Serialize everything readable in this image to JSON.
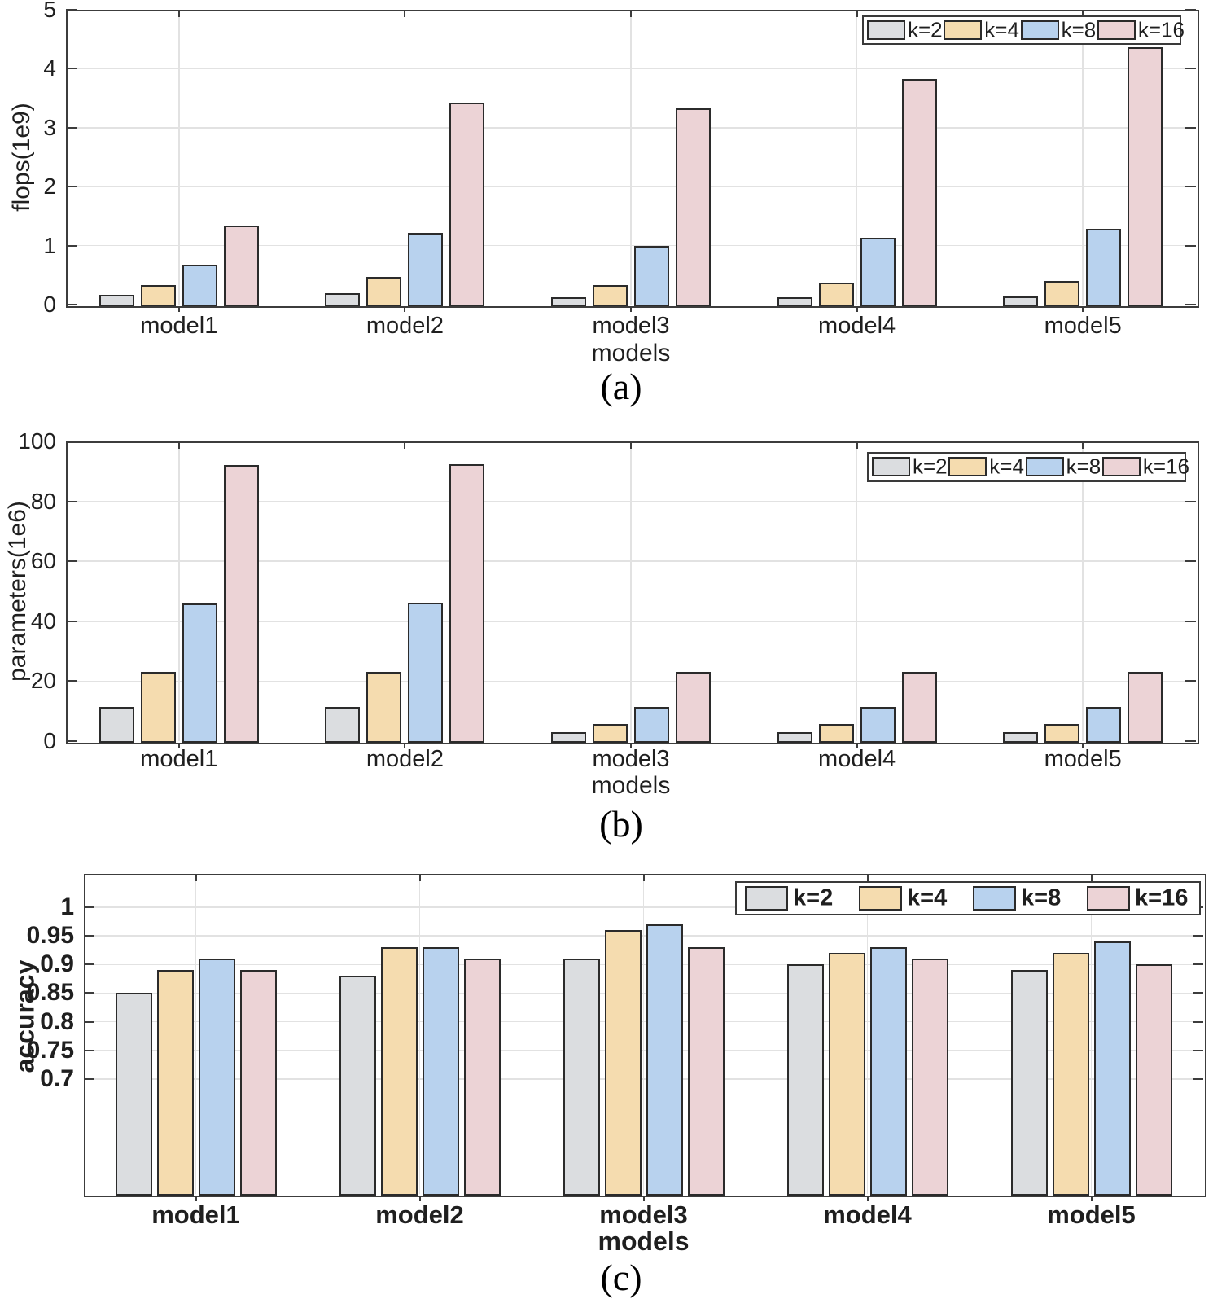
{
  "figure": {
    "background": "#ffffff",
    "legend_labels": [
      "k=2",
      "k=4",
      "k=8",
      "k=16"
    ],
    "series_colors": [
      "#dbdde0",
      "#f5dcaf",
      "#b8d2ee",
      "#ecd3d6"
    ],
    "edge_color": "#2b2b2b",
    "spine_color": "#3c3c3c",
    "grid_color": "#e2e2e2"
  },
  "chart_data": [
    {
      "type": "bar",
      "caption": "(a)",
      "ylabel": "flops(1e9)",
      "xlabel": "models",
      "categories": [
        "model1",
        "model2",
        "model3",
        "model4",
        "model5"
      ],
      "series": [
        {
          "name": "k=2",
          "values": [
            0.16,
            0.2,
            0.12,
            0.13,
            0.14
          ]
        },
        {
          "name": "k=4",
          "values": [
            0.33,
            0.47,
            0.33,
            0.37,
            0.4
          ]
        },
        {
          "name": "k=8",
          "values": [
            0.68,
            1.22,
            1.0,
            1.13,
            1.28
          ]
        },
        {
          "name": "k=16",
          "values": [
            1.34,
            3.43,
            3.33,
            3.82,
            4.37
          ]
        }
      ],
      "ylim": [
        0,
        5
      ],
      "yticks": [
        0,
        1,
        2,
        3,
        4,
        5
      ],
      "ytick_labels": [
        "0",
        "1",
        "2",
        "3",
        "4",
        "5"
      ],
      "grid": true,
      "legend_position": "top-right"
    },
    {
      "type": "bar",
      "caption": "(b)",
      "ylabel": "parameters(1e6)",
      "xlabel": "models",
      "categories": [
        "model1",
        "model2",
        "model3",
        "model4",
        "model5"
      ],
      "series": [
        {
          "name": "k=2",
          "values": [
            11.4,
            11.4,
            3.0,
            3.0,
            3.0
          ]
        },
        {
          "name": "k=4",
          "values": [
            23.0,
            23.2,
            5.7,
            5.7,
            5.7
          ]
        },
        {
          "name": "k=8",
          "values": [
            46.0,
            46.3,
            11.5,
            11.5,
            11.5
          ]
        },
        {
          "name": "k=16",
          "values": [
            92.0,
            92.3,
            23.0,
            23.0,
            23.0
          ]
        }
      ],
      "ylim": [
        0,
        100
      ],
      "yticks": [
        0,
        20,
        40,
        60,
        80,
        100
      ],
      "ytick_labels": [
        "0",
        "20",
        "40",
        "60",
        "80",
        "100"
      ],
      "grid": true,
      "legend_position": "top-right"
    },
    {
      "type": "bar",
      "caption": "(c)",
      "ylabel": "accuracy",
      "xlabel": "models",
      "categories": [
        "model1",
        "model2",
        "model3",
        "model4",
        "model5"
      ],
      "series": [
        {
          "name": "k=2",
          "values": [
            0.85,
            0.88,
            0.91,
            0.9,
            0.89
          ]
        },
        {
          "name": "k=4",
          "values": [
            0.89,
            0.93,
            0.96,
            0.92,
            0.92
          ]
        },
        {
          "name": "k=8",
          "values": [
            0.91,
            0.93,
            0.97,
            0.93,
            0.94
          ]
        },
        {
          "name": "k=16",
          "values": [
            0.89,
            0.91,
            0.93,
            0.91,
            0.9
          ]
        }
      ],
      "ylim": [
        0.5,
        1.058
      ],
      "yticks": [
        0.7,
        0.75,
        0.8,
        0.85,
        0.9,
        0.95,
        1
      ],
      "ytick_labels": [
        "0.7",
        "0.75",
        "0.8",
        "0.85",
        "0.9",
        "0.95",
        "1"
      ],
      "grid": true,
      "legend_position": "top-right"
    }
  ]
}
